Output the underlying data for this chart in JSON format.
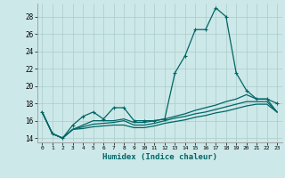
{
  "xlabel": "Humidex (Indice chaleur)",
  "bg_color": "#cde8e8",
  "grid_color": "#aacccc",
  "line_color": "#006666",
  "xlim": [
    -0.5,
    23.5
  ],
  "ylim": [
    13.5,
    29.5
  ],
  "xticks": [
    0,
    1,
    2,
    3,
    4,
    5,
    6,
    7,
    8,
    9,
    10,
    11,
    12,
    13,
    14,
    15,
    16,
    17,
    18,
    19,
    20,
    21,
    22,
    23
  ],
  "yticks": [
    14,
    16,
    18,
    20,
    22,
    24,
    26,
    28
  ],
  "series1": [
    17.0,
    14.5,
    14.0,
    15.5,
    16.5,
    17.0,
    16.2,
    17.5,
    17.5,
    16.0,
    16.0,
    16.0,
    16.2,
    21.5,
    23.5,
    26.5,
    26.5,
    29.0,
    28.0,
    21.5,
    19.5,
    18.5,
    18.5,
    18.0
  ],
  "series2": [
    17.0,
    14.5,
    14.0,
    15.0,
    15.5,
    16.0,
    16.0,
    16.0,
    16.2,
    15.8,
    15.8,
    16.0,
    16.2,
    16.5,
    16.8,
    17.2,
    17.5,
    17.8,
    18.2,
    18.5,
    19.0,
    18.5,
    18.5,
    17.0
  ],
  "series3": [
    17.0,
    14.5,
    14.0,
    15.0,
    15.3,
    15.6,
    15.7,
    15.8,
    16.0,
    15.5,
    15.5,
    15.7,
    16.0,
    16.3,
    16.5,
    16.8,
    17.0,
    17.3,
    17.6,
    17.9,
    18.2,
    18.2,
    18.2,
    17.0
  ],
  "series4": [
    17.0,
    14.5,
    14.0,
    15.0,
    15.1,
    15.3,
    15.4,
    15.5,
    15.5,
    15.2,
    15.2,
    15.4,
    15.7,
    15.9,
    16.1,
    16.4,
    16.6,
    16.9,
    17.1,
    17.4,
    17.7,
    17.9,
    17.9,
    17.0
  ]
}
